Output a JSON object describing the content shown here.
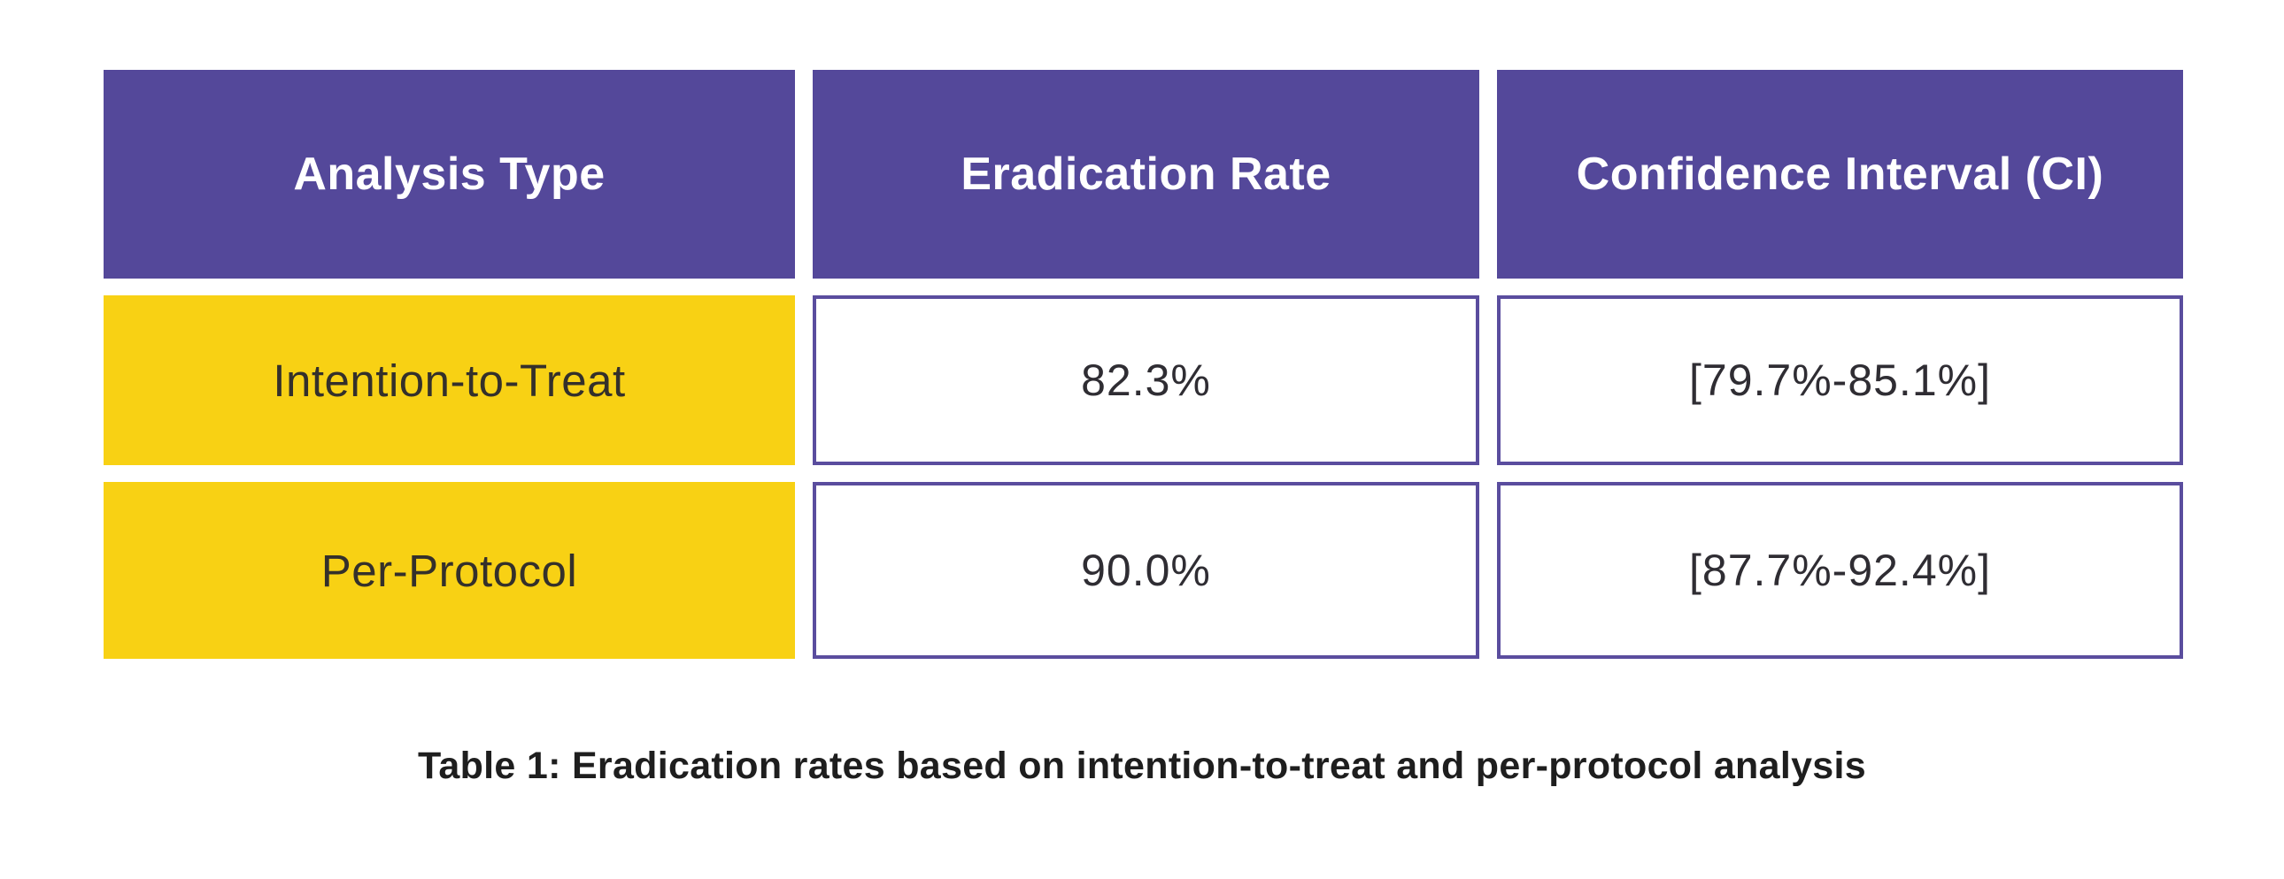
{
  "table": {
    "headers": [
      "Analysis Type",
      "Eradication Rate",
      "Confidence Interval (CI)"
    ],
    "rows": [
      {
        "analysis_type": "Intention-to-Treat",
        "eradication_rate": "82.3%",
        "confidence_interval": "[79.7%-85.1%]"
      },
      {
        "analysis_type": "Per-Protocol",
        "eradication_rate": "90.0%",
        "confidence_interval": "[87.7%-92.4%]"
      }
    ],
    "caption": "Table 1: Eradication rates based on intention-to-treat and per-protocol analysis"
  },
  "colors": {
    "header_bg": "#54489a",
    "header_text": "#ffffff",
    "row_label_bg": "#f8d114",
    "value_cell_border": "#5a4d9e",
    "value_cell_bg": "#ffffff",
    "body_text": "#34302b",
    "caption_text": "#1e1e1e",
    "page_bg": "#ffffff"
  },
  "chart_data": {
    "type": "table",
    "title": "Table 1: Eradication rates based on intention-to-treat and per-protocol analysis",
    "columns": [
      "Analysis Type",
      "Eradication Rate",
      "Confidence Interval (CI)"
    ],
    "rows": [
      [
        "Intention-to-Treat",
        "82.3%",
        "[79.7%-85.1%]"
      ],
      [
        "Per-Protocol",
        "90.0%",
        "[87.7%-92.4%]"
      ]
    ],
    "values": {
      "intention_to_treat": {
        "eradication_rate_pct": 82.3,
        "ci_low_pct": 79.7,
        "ci_high_pct": 85.1
      },
      "per_protocol": {
        "eradication_rate_pct": 90.0,
        "ci_low_pct": 87.7,
        "ci_high_pct": 92.4
      }
    },
    "layout_hints": {
      "header_row_highlight": "purple",
      "label_column_highlight": "yellow",
      "grid": "separated-cells-with-gaps",
      "caption_position": "bottom-center"
    }
  }
}
